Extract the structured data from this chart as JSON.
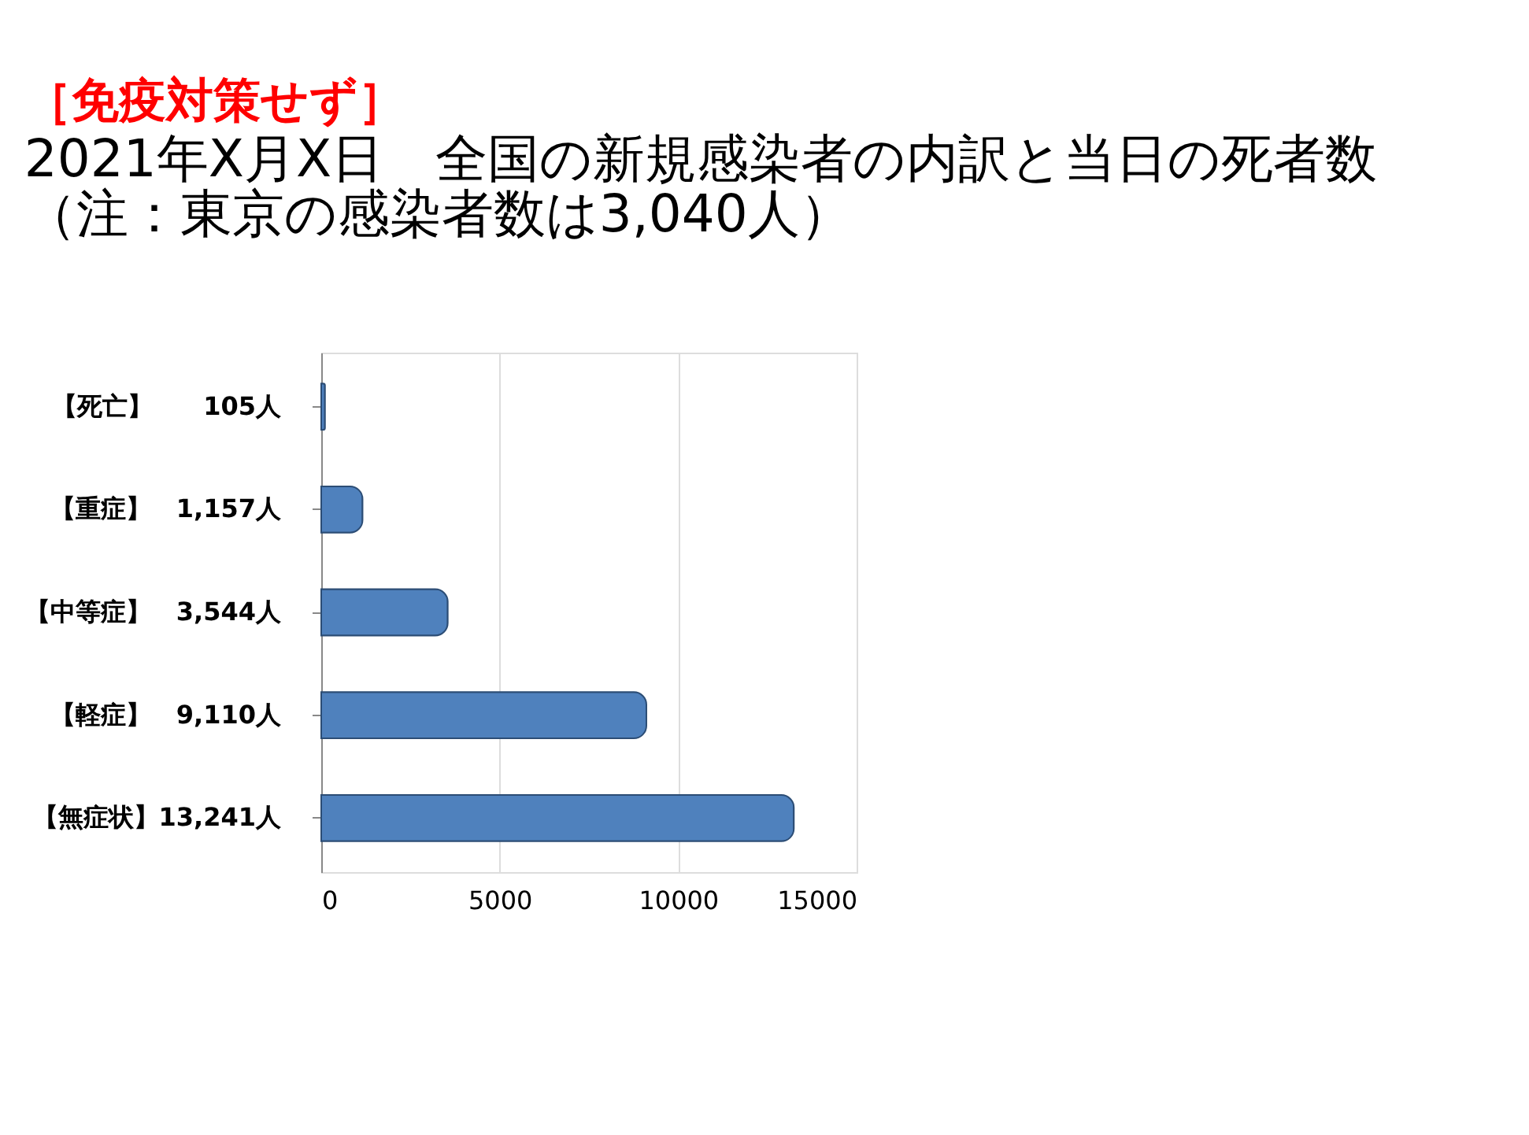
{
  "chart_data": {
    "type": "bar",
    "orientation": "horizontal",
    "title": "［免疫対策せず］",
    "subtitle": "2021年X月X日　全国の新規感染者の内訳と当日の死者数",
    "annotations": [
      "（注：東京の感染者数は3,040人）"
    ],
    "categories": [
      "【死亡】　　105人",
      "【重症】　1,157人",
      "【中等症】　3,544人",
      "【軽症】　9,110人",
      "【無症状】13,241人"
    ],
    "values": [
      105,
      1157,
      3544,
      9110,
      13241
    ],
    "color": "#4f81bd",
    "xlim": [
      0,
      15000
    ],
    "xticks": [
      0,
      5000,
      10000,
      15000
    ],
    "grid": "x"
  }
}
